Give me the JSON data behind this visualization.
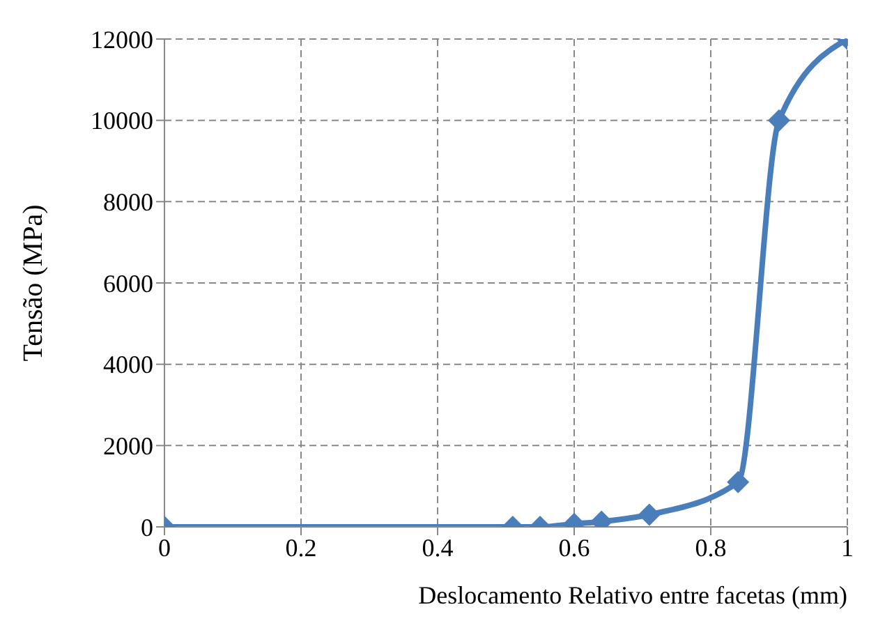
{
  "chart_data": {
    "type": "line",
    "xlabel": "Deslocamento Relativo entre facetas (mm)",
    "ylabel": "Tensão (MPa)",
    "x": [
      0,
      0.51,
      0.55,
      0.6,
      0.64,
      0.71,
      0.84,
      0.9,
      1
    ],
    "series": [
      {
        "color": "#4a7ebb",
        "values": [
          0,
          0,
          0,
          75,
          130,
          300,
          1100,
          10000,
          12000
        ]
      }
    ],
    "xlim": [
      0,
      1
    ],
    "xticks": [
      0,
      0.2,
      0.4,
      0.6,
      0.8,
      1
    ],
    "ylim": [
      0,
      12000
    ],
    "yticks": [
      0,
      2000,
      4000,
      6000,
      8000,
      10000,
      12000
    ],
    "grid": true,
    "legend": false,
    "marker": "diamond",
    "line_style": "solid"
  }
}
